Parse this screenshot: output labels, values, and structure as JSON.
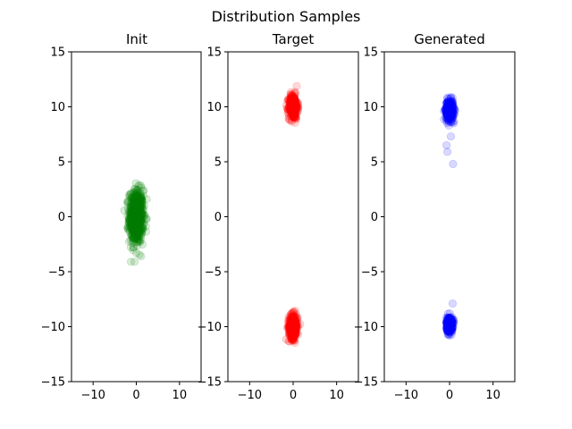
{
  "figure": {
    "title": "Distribution Samples"
  },
  "chart_data": [
    {
      "type": "scatter",
      "title": "Init",
      "xlim": [
        -15,
        15
      ],
      "ylim": [
        -15,
        15
      ],
      "xticks": [
        -10,
        0,
        10
      ],
      "yticks": [
        -15,
        -10,
        -5,
        0,
        5,
        10,
        15
      ],
      "grid": false,
      "series": [
        {
          "color": "#008000",
          "opacity": 0.15,
          "clusters": [
            {
              "center": [
                0,
                0
              ],
              "std": [
                0.8,
                1.2
              ],
              "count": 700,
              "x_range": [
                -2.8,
                2.8
              ],
              "y_range": [
                -4.1,
                3.9
              ]
            }
          ]
        }
      ]
    },
    {
      "type": "scatter",
      "title": "Target",
      "xlim": [
        -15,
        15
      ],
      "ylim": [
        -15,
        15
      ],
      "xticks": [
        -10,
        0,
        10
      ],
      "yticks": [
        -15,
        -10,
        -5,
        0,
        5,
        10,
        15
      ],
      "grid": false,
      "series": [
        {
          "color": "#ff0000",
          "opacity": 0.15,
          "clusters": [
            {
              "center": [
                0,
                10
              ],
              "std": [
                0.5,
                0.55
              ],
              "count": 350,
              "x_range": [
                -1.6,
                1.6
              ],
              "y_range": [
                8.0,
                12.0
              ]
            },
            {
              "center": [
                0,
                -10
              ],
              "std": [
                0.5,
                0.55
              ],
              "count": 350,
              "x_range": [
                -1.6,
                1.6
              ],
              "y_range": [
                -12.0,
                -8.0
              ]
            }
          ]
        }
      ]
    },
    {
      "type": "scatter",
      "title": "Generated",
      "xlim": [
        -15,
        15
      ],
      "ylim": [
        -15,
        15
      ],
      "xticks": [
        -10,
        0,
        10
      ],
      "yticks": [
        -15,
        -10,
        -5,
        0,
        5,
        10,
        15
      ],
      "grid": false,
      "series": [
        {
          "color": "#0000ff",
          "opacity": 0.15,
          "clusters": [
            {
              "center": [
                0,
                9.7
              ],
              "std": [
                0.45,
                0.45
              ],
              "count": 350,
              "x_range": [
                -1.3,
                1.3
              ],
              "y_range": [
                8.5,
                11.0
              ]
            },
            {
              "center": [
                0,
                -9.8
              ],
              "std": [
                0.35,
                0.35
              ],
              "count": 350,
              "x_range": [
                -1.3,
                1.3
              ],
              "y_range": [
                -10.9,
                -8.5
              ]
            }
          ],
          "points": [
            {
              "x": 0.3,
              "y": 7.3
            },
            {
              "x": -0.7,
              "y": 6.5
            },
            {
              "x": -0.5,
              "y": 5.9
            },
            {
              "x": 0.8,
              "y": 4.8
            },
            {
              "x": 0.7,
              "y": -7.9
            },
            {
              "x": -0.2,
              "y": 8.3
            },
            {
              "x": 1.0,
              "y": 8.7
            }
          ]
        }
      ]
    }
  ]
}
